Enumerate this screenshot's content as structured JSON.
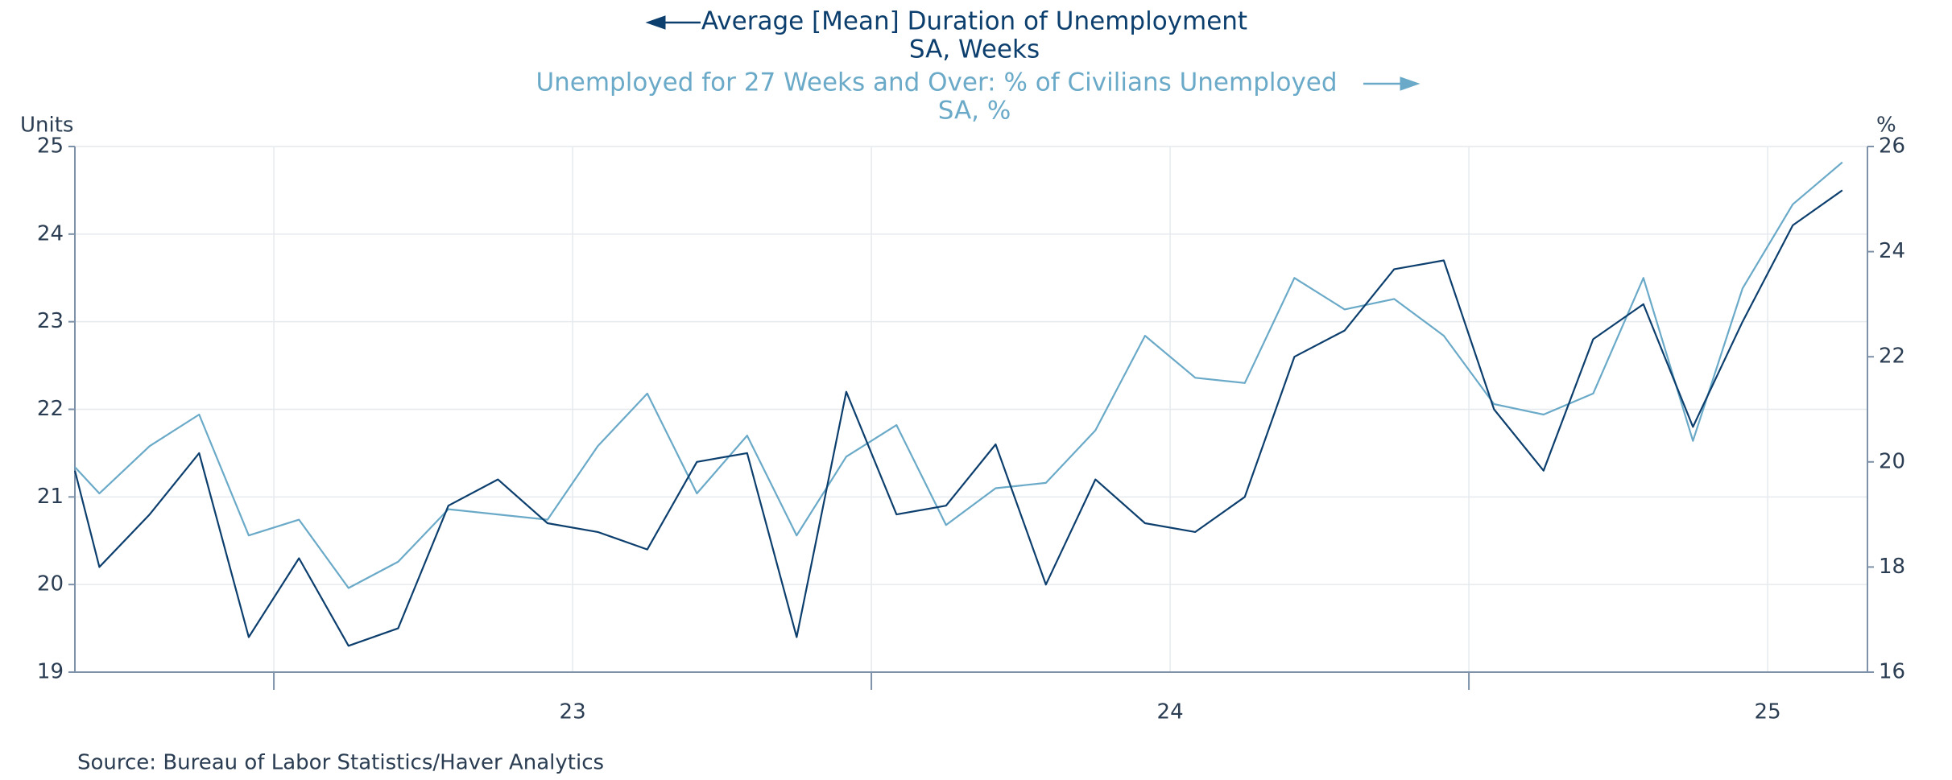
{
  "chart_data": {
    "type": "line",
    "source": "Source:  Bureau of Labor Statistics/Haver Analytics",
    "ylabel": "Units",
    "y2label": "%",
    "xlim": [
      2022.167,
      2025.167
    ],
    "xticks": [
      {
        "value": 2023,
        "label": "23"
      },
      {
        "value": 2024,
        "label": "24"
      },
      {
        "value": 2025,
        "label": "25"
      }
    ],
    "xticks_minor": [
      2022.5,
      2023.5,
      2024.5
    ],
    "ylim": [
      19,
      25
    ],
    "yticks": [
      19,
      20,
      21,
      22,
      23,
      24,
      25
    ],
    "y2lim": [
      16,
      26
    ],
    "y2ticks": [
      16,
      18,
      20,
      22,
      24,
      26
    ],
    "grid": true,
    "x": [
      2022.167,
      2022.208,
      2022.292,
      2022.375,
      2022.458,
      2022.542,
      2022.625,
      2022.708,
      2022.792,
      2022.875,
      2022.958,
      2023.042,
      2023.125,
      2023.208,
      2023.292,
      2023.375,
      2023.458,
      2023.542,
      2023.625,
      2023.708,
      2023.792,
      2023.875,
      2023.958,
      2024.042,
      2024.125,
      2024.208,
      2024.292,
      2024.375,
      2024.458,
      2024.542,
      2024.625,
      2024.708,
      2024.792,
      2024.875,
      2024.958,
      2025.042,
      2025.125
    ],
    "series": [
      {
        "name": "Average [Mean] Duration of Unemployment",
        "unit": "SA, Weeks",
        "color": "#0d3f6e",
        "axis": "y",
        "values": [
          21.3,
          20.2,
          20.8,
          21.5,
          19.4,
          20.3,
          19.3,
          19.5,
          20.9,
          21.2,
          20.7,
          20.6,
          20.4,
          21.4,
          21.5,
          19.4,
          22.2,
          20.8,
          20.9,
          21.6,
          20.0,
          21.2,
          20.7,
          20.6,
          21.0,
          22.6,
          22.9,
          23.6,
          23.7,
          22.0,
          21.3,
          22.8,
          23.2,
          21.8,
          23.0,
          24.1,
          24.5
        ]
      },
      {
        "name": "Unemployed for 27 Weeks and Over: % of Civilians Unemployed",
        "unit": "SA, %",
        "color": "#6aaac8",
        "axis": "y2",
        "values": [
          19.9,
          19.4,
          20.3,
          20.9,
          18.6,
          18.9,
          17.6,
          18.1,
          19.1,
          19.0,
          18.9,
          20.3,
          21.3,
          19.4,
          20.5,
          18.6,
          20.1,
          20.7,
          18.8,
          19.5,
          19.6,
          20.6,
          22.4,
          21.6,
          21.5,
          23.5,
          22.9,
          23.1,
          22.4,
          21.1,
          20.9,
          21.3,
          23.5,
          20.4,
          23.3,
          24.9,
          25.7
        ]
      }
    ]
  }
}
